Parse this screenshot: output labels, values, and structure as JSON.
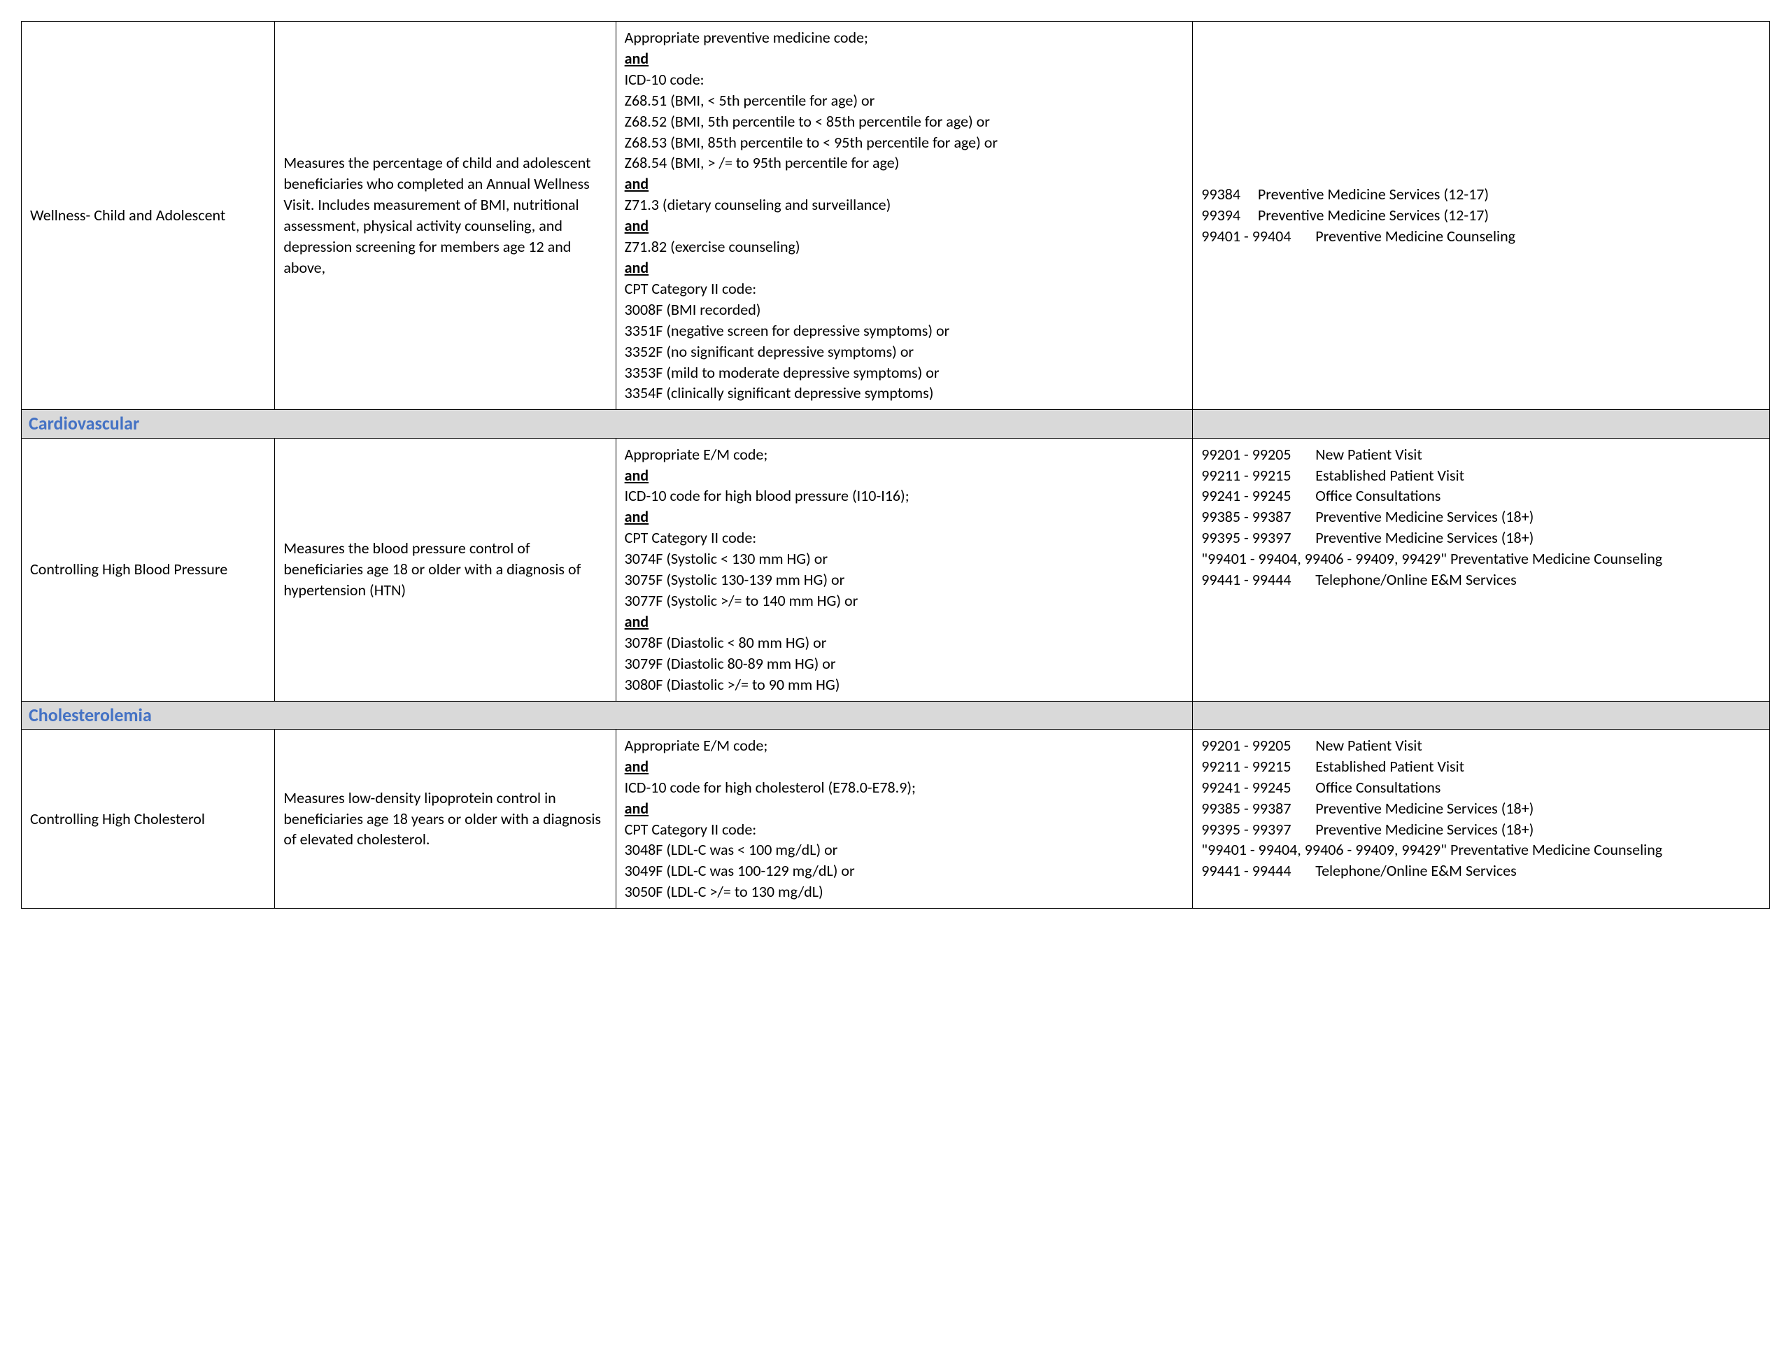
{
  "colors": {
    "border": "#000000",
    "section_bg": "#d9d9d9",
    "section_text": "#4472c4",
    "text": "#000000",
    "background": "#ffffff"
  },
  "columns": [
    "measure",
    "description",
    "criteria",
    "codes"
  ],
  "rows": {
    "wellness_child": {
      "name": "Wellness- Child and Adolescent",
      "description": "Measures the percentage of child and adolescent beneficiaries who completed an Annual Wellness Visit. Includes measurement of BMI, nutritional assessment, physical activity counseling, and depression screening for members age 12 and above,",
      "criteria": {
        "line1": "Appropriate preventive medicine code;",
        "and1": "and",
        "line2": "ICD-10 code:",
        "line3": "Z68.51 (BMI, < 5th percentile for age) or",
        "line4": "Z68.52 (BMI, 5th percentile to < 85th percentile for age) or",
        "line5": "Z68.53 (BMI, 85th percentile to < 95th percentile for age) or",
        "line6": "Z68.54 (BMI, > /= to 95th percentile for age)",
        "and2": "and",
        "line7": "Z71.3 (dietary counseling and surveillance)",
        "and3": "and",
        "line8": "Z71.82 (exercise counseling)",
        "and4": "and",
        "line9": "CPT Category II code:",
        "line10": "3008F (BMI recorded)",
        "line11": "3351F (negative screen for depressive symptoms) or",
        "line12": "3352F (no significant depressive symptoms) or",
        "line13": "3353F (mild to moderate depressive symptoms) or",
        "line14": "3354F (clinically significant depressive symptoms)"
      },
      "codes": {
        "l1": "99384     Preventive Medicine Services (12-17)",
        "l2": "99394     Preventive Medicine Services (12-17)",
        "l3": "99401 - 99404       Preventive Medicine Counseling"
      }
    },
    "section_cardio": "Cardiovascular",
    "controlling_bp": {
      "name": "Controlling High Blood Pressure",
      "description": "Measures the blood pressure control of beneficiaries age 18 or older with a diagnosis of hypertension (HTN)",
      "criteria": {
        "line1": "Appropriate E/M code;",
        "and1": "and",
        "line2": "ICD-10 code for high blood pressure (I10-I16);",
        "and2": "and",
        "line3": "CPT Category II code:",
        "line4": "3074F (Systolic < 130 mm HG) or",
        "line5": "3075F (Systolic 130-139 mm HG) or",
        "line6": "3077F (Systolic >/= to 140 mm HG) or",
        "and3": "and",
        "line7": "3078F (Diastolic < 80 mm HG) or",
        "line8": "3079F (Diastolic 80-89 mm HG) or",
        "line9": "3080F (Diastolic >/= to 90 mm HG)"
      },
      "codes": {
        "l1": "99201 - 99205       New Patient Visit",
        "l2": "99211 - 99215       Established Patient Visit",
        "l3": "99241 - 99245       Office Consultations",
        "l4": "99385 - 99387       Preventive Medicine Services (18+)",
        "l5": "99395 - 99397       Preventive Medicine Services (18+)",
        "l6": "\"99401 - 99404, 99406 - 99409, 99429\" Preventative Medicine Counseling",
        "l7": "99441 - 99444       Telephone/Online E&M Services"
      }
    },
    "section_chol": "Cholesterolemia",
    "controlling_chol": {
      "name": "Controlling High Cholesterol",
      "description": "Measures low-density lipoprotein control in beneficiaries age 18 years or older with a diagnosis of elevated cholesterol.",
      "criteria": {
        "line1": "Appropriate E/M code;",
        "and1": "and",
        "line2": "ICD-10 code for high cholesterol (E78.0-E78.9);",
        "and2": "and",
        "line3": "CPT Category II code:",
        "line4": "3048F (LDL-C was < 100 mg/dL) or",
        "line5": "3049F (LDL-C was 100-129 mg/dL) or",
        "line6": "3050F (LDL-C >/= to 130 mg/dL)"
      },
      "codes": {
        "l1": "99201 - 99205       New Patient Visit",
        "l2": "99211 - 99215       Established Patient Visit",
        "l3": "99241 - 99245       Office Consultations",
        "l4": "99385 - 99387       Preventive Medicine Services (18+)",
        "l5": "99395 - 99397       Preventive Medicine Services (18+)",
        "l6": "\"99401 - 99404, 99406 - 99409, 99429\" Preventative Medicine Counseling",
        "l7": "99441 - 99444       Telephone/Online E&M Services"
      }
    }
  }
}
